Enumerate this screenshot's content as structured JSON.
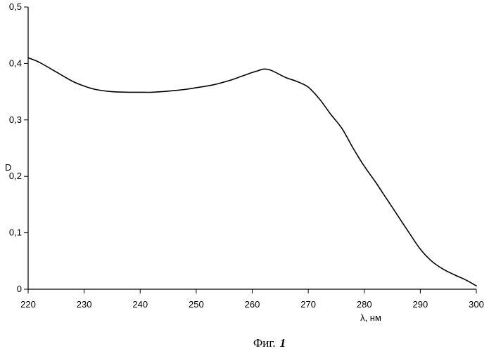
{
  "chart_data": {
    "type": "line",
    "title": "",
    "xlabel": "λ, нм",
    "ylabel": "D",
    "xlim": [
      220,
      300
    ],
    "ylim": [
      0,
      0.5
    ],
    "x_ticks": [
      220,
      230,
      240,
      250,
      260,
      270,
      280,
      290,
      300
    ],
    "x_tick_labels": [
      "220",
      "230",
      "240",
      "250",
      "260",
      "270",
      "280",
      "290",
      "300"
    ],
    "y_ticks": [
      0,
      0.1,
      0.2,
      0.3,
      0.4,
      0.5
    ],
    "y_tick_labels": [
      "0",
      "0,1",
      "0,2",
      "0,3",
      "0,4",
      "0,5"
    ],
    "grid": false,
    "legend": null,
    "series": [
      {
        "name": "D",
        "color": "#000000",
        "x": [
          220,
          222,
          225,
          228,
          230,
          232,
          235,
          238,
          240,
          242,
          245,
          248,
          250,
          253,
          256,
          258,
          260,
          261,
          262,
          263,
          264,
          266,
          268,
          270,
          272,
          274,
          276,
          278,
          280,
          282,
          284,
          286,
          288,
          290,
          292,
          294,
          296,
          298,
          300
        ],
        "y": [
          0.41,
          0.402,
          0.385,
          0.368,
          0.36,
          0.354,
          0.35,
          0.349,
          0.349,
          0.349,
          0.351,
          0.354,
          0.357,
          0.362,
          0.37,
          0.377,
          0.384,
          0.387,
          0.39,
          0.389,
          0.385,
          0.375,
          0.368,
          0.358,
          0.337,
          0.31,
          0.285,
          0.25,
          0.218,
          0.19,
          0.16,
          0.13,
          0.1,
          0.071,
          0.05,
          0.036,
          0.026,
          0.017,
          0.006
        ]
      }
    ]
  },
  "figure": {
    "caption_text": "Фиг.",
    "caption_number": "1"
  }
}
